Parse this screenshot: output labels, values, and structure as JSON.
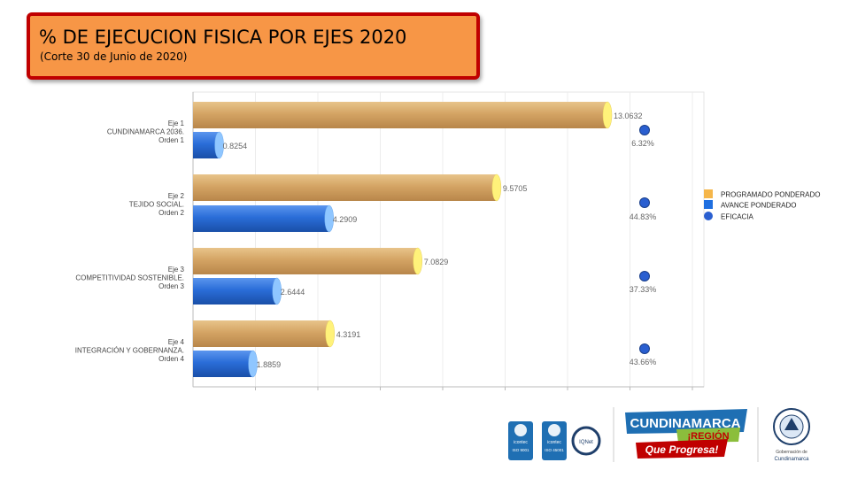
{
  "header": {
    "title": "% DE EJECUCION FISICA POR EJES 2020",
    "subtitle": "(Corte 30 de Junio de 2020)"
  },
  "chart_data": {
    "type": "bar",
    "orientation": "horizontal",
    "categories": [
      [
        "Eje 1",
        "CUNDINAMARCA 2036.",
        "Orden 1"
      ],
      [
        "Eje 2",
        "TEJIDO SOCIAL.",
        "Orden 2"
      ],
      [
        "Eje 3",
        "COMPETITIVIDAD SOSTENIBLE.",
        "Orden 3"
      ],
      [
        "Eje 4",
        "INTEGRACIÓN Y GOBERNANZA.",
        "Orden 4"
      ]
    ],
    "series": [
      {
        "name": "PROGRAMADO PONDERADO",
        "values": [
          13.0632,
          9.5705,
          7.0829,
          4.3191
        ],
        "labels": [
          "13.0632",
          "9.5705",
          "7.0829",
          "4.3191"
        ],
        "color": "#d4a464"
      },
      {
        "name": "AVANCE PONDERADO",
        "values": [
          0.8254,
          4.2909,
          2.6444,
          1.8859
        ],
        "labels": [
          "0.8254",
          "4.2909",
          "2.6444",
          "1.8859"
        ],
        "color": "#2a6dd8"
      },
      {
        "name": "EFICACIA",
        "values": [
          6.32,
          44.83,
          37.33,
          43.66
        ],
        "labels": [
          "6.32%",
          "44.83%",
          "37.33%",
          "43.66%"
        ],
        "color": "#2a5fd0"
      }
    ],
    "legend_position": "right",
    "grid": true
  },
  "footer": {
    "logos": [
      {
        "name": "icontec-iso-9001",
        "text": "icontec",
        "sub": "ISO 9001"
      },
      {
        "name": "icontec-iso-45001",
        "text": "icontec",
        "sub": "ISO 45001"
      },
      {
        "name": "iqnet",
        "text": "IQNet"
      }
    ],
    "brand": {
      "line1": "CUNDINAMARCA",
      "line2": "¡REGIÓN",
      "line3": "Que Progresa!"
    },
    "gobernacion": {
      "line1": "Gobernación de",
      "line2": "Cundinamarca"
    }
  }
}
